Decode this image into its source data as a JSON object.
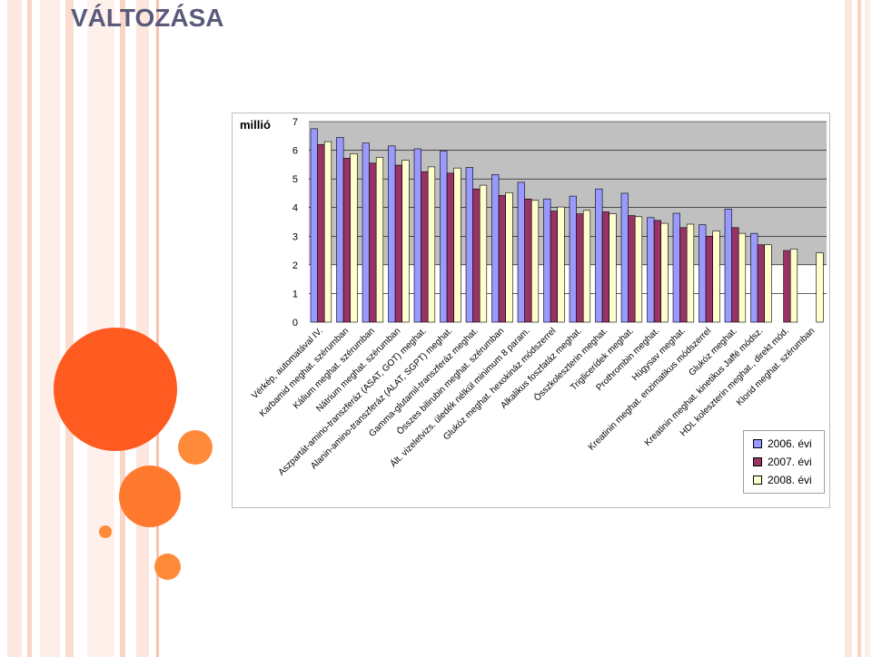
{
  "page": {
    "title": "VÁLTOZÁSA"
  },
  "chart_data": {
    "type": "bar",
    "title": "",
    "ylabel": "millió",
    "xlabel": "",
    "ylim": [
      0,
      7
    ],
    "yticks": [
      "0",
      "1",
      "2",
      "3",
      "4",
      "5",
      "6",
      "7"
    ],
    "grid": true,
    "legend_position": "bottom-right",
    "categories": [
      "Vérkép, automatával IV.",
      "Karbamid meghat. szérumban",
      "Kálium meghat. szérumban",
      "Nátrium meghat. szérumban",
      "Aszpartát-amino-transzferáz (ASAT, GOT) meghat.",
      "Alanin-amino-transzferáz (ALAT, SGPT) meghat.",
      "Gamma-glutamil-transzferáz meghat.",
      "Összes bilirubin meghat. szérumban",
      "Ált. vizeletvizs. üledék nélkül minimum 8 param.",
      "Glukóz meghat. hexokináz módszerrel",
      "Alkalikus foszfatáz meghat.",
      "Összkoleszterin meghat.",
      "Triglicerídek meghat.",
      "Prothrombin meghat.",
      "Húgysav meghat.",
      "Kreatinin meghat. enzimatikus módszerrel",
      "Glukóz meghat.",
      "Kreatinin meghat. kinetikus Jaffé módsz.",
      "HDL koleszterin meghat., direkt mód.",
      "Klorid meghat. szérumban"
    ],
    "series": [
      {
        "name": "2006. évi",
        "color": "#9999ff",
        "values": [
          6.75,
          6.45,
          6.25,
          6.15,
          6.05,
          5.98,
          5.4,
          5.15,
          4.88,
          4.3,
          4.4,
          4.65,
          4.5,
          3.65,
          3.8,
          3.4,
          3.95,
          3.1,
          null,
          null
        ]
      },
      {
        "name": "2007. évi",
        "color": "#993366",
        "values": [
          6.2,
          5.72,
          5.55,
          5.48,
          5.25,
          5.2,
          4.65,
          4.42,
          4.3,
          3.88,
          3.78,
          3.85,
          3.72,
          3.55,
          3.3,
          3.0,
          3.3,
          2.7,
          2.5,
          null
        ]
      },
      {
        "name": "2008. évi",
        "color": "#ffffcc",
        "values": [
          6.3,
          5.88,
          5.75,
          5.65,
          5.42,
          5.38,
          4.78,
          4.52,
          4.25,
          4.02,
          3.9,
          3.78,
          3.68,
          3.45,
          3.42,
          3.18,
          3.1,
          2.7,
          2.55,
          2.42
        ]
      }
    ]
  }
}
